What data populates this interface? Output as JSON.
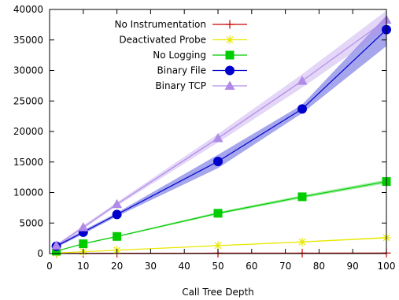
{
  "chart_data": {
    "type": "line",
    "xlabel": "Call Tree Depth",
    "ylabel": "",
    "xlim": [
      0,
      100
    ],
    "ylim": [
      0,
      40000
    ],
    "x_ticks": [
      0,
      10,
      20,
      30,
      40,
      50,
      60,
      70,
      80,
      90,
      100
    ],
    "y_ticks": [
      0,
      5000,
      10000,
      15000,
      20000,
      25000,
      30000,
      35000,
      40000
    ],
    "grid": false,
    "legend_position": "top-left",
    "x": [
      2,
      10,
      20,
      50,
      75,
      100
    ],
    "series": [
      {
        "name": "No Instrumentation",
        "color": "#cc0000",
        "marker": "plus",
        "values": [
          30,
          40,
          50,
          60,
          70,
          80
        ],
        "band": null
      },
      {
        "name": "Deactivated Probe",
        "color": "#e8e800",
        "marker": "star",
        "values": [
          100,
          300,
          550,
          1300,
          1900,
          2600
        ],
        "band": [
          [
            80,
            120
          ],
          [
            260,
            340
          ],
          [
            500,
            600
          ],
          [
            1200,
            1400
          ],
          [
            1800,
            2000
          ],
          [
            2450,
            2750
          ]
        ]
      },
      {
        "name": "No Logging",
        "color": "#00cc00",
        "marker": "square",
        "values": [
          400,
          1600,
          2800,
          6600,
          9300,
          11800
        ],
        "band": [
          [
            350,
            450
          ],
          [
            1500,
            1700
          ],
          [
            2700,
            2900
          ],
          [
            6400,
            6800
          ],
          [
            9050,
            9550
          ],
          [
            11500,
            12100
          ]
        ]
      },
      {
        "name": "Binary File",
        "color": "#0000cc",
        "marker": "circle",
        "values": [
          1200,
          3500,
          6400,
          15100,
          23700,
          36700
        ],
        "band": [
          [
            1000,
            1400
          ],
          [
            3200,
            3800
          ],
          [
            6100,
            6700
          ],
          [
            14000,
            16200
          ],
          [
            23000,
            24400
          ],
          [
            34000,
            39000
          ]
        ]
      },
      {
        "name": "Binary TCP",
        "color": "#b08ae8",
        "marker": "triangle",
        "values": [
          1300,
          4300,
          8100,
          18900,
          28300,
          38300
        ],
        "band": [
          [
            1100,
            1500
          ],
          [
            4000,
            4600
          ],
          [
            7800,
            8400
          ],
          [
            18200,
            19600
          ],
          [
            27200,
            29400
          ],
          [
            36800,
            39800
          ]
        ]
      }
    ]
  }
}
